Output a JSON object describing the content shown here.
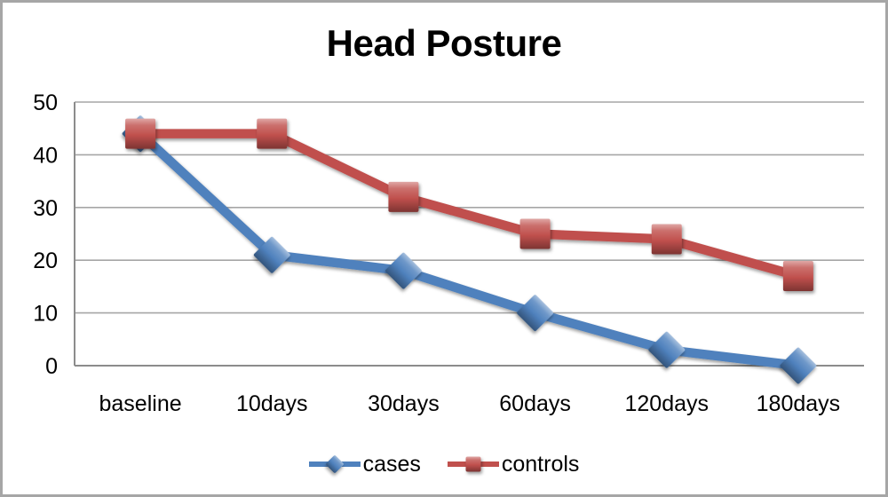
{
  "chart_data": {
    "type": "line",
    "title": "Head Posture",
    "categories": [
      "baseline",
      "10days",
      "30days",
      "60days",
      "120days",
      "180days"
    ],
    "series": [
      {
        "name": "cases",
        "marker": "diamond",
        "color": "#4f81bd",
        "values": [
          44,
          21,
          18,
          10,
          3,
          0
        ]
      },
      {
        "name": "controls",
        "marker": "square",
        "color": "#c0504d",
        "values": [
          44,
          44,
          32,
          25,
          24,
          17
        ]
      }
    ],
    "ylim": [
      0,
      50
    ],
    "yticks": [
      0,
      10,
      20,
      30,
      40,
      50
    ],
    "xlabel": "",
    "ylabel": "",
    "grid": "horizontal",
    "legend_position": "bottom",
    "colors": {
      "gridline": "#a6a6a6",
      "axis": "#8c8c8c",
      "tick_text": "#000000",
      "frame_border": "#a6a6a6",
      "background": "#ffffff"
    }
  }
}
